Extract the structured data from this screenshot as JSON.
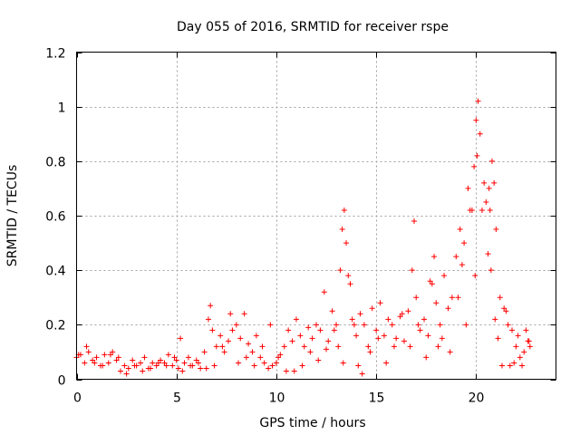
{
  "chart_data": {
    "type": "scatter",
    "title": "Day 055 of 2016, SRMTID for receiver rspe",
    "xlabel": "GPS time / hours",
    "ylabel": "SRMTID / TECUs",
    "xlim": [
      0,
      24
    ],
    "ylim": [
      0,
      1.2
    ],
    "x_ticks": [
      0,
      5,
      10,
      15,
      20
    ],
    "x_tick_labels": [
      "0",
      "5",
      "10",
      "15",
      "20"
    ],
    "y_ticks": [
      0,
      0.2,
      0.4,
      0.6,
      0.8,
      1.0,
      1.2
    ],
    "y_tick_labels": [
      "0",
      "0.2",
      "0.4",
      "0.6",
      "0.8",
      "1",
      "1.2"
    ],
    "grid": true,
    "marker": "plus",
    "color": "#ff0000",
    "series": [
      {
        "name": "rspe",
        "x": [
          0.0,
          0.2,
          0.4,
          0.6,
          0.8,
          1.0,
          1.2,
          1.4,
          1.6,
          1.8,
          2.0,
          2.2,
          2.4,
          2.6,
          2.8,
          3.0,
          3.2,
          3.4,
          3.6,
          3.8,
          4.0,
          4.2,
          4.4,
          4.6,
          4.8,
          5.0,
          5.2,
          5.4,
          5.6,
          5.8,
          6.0,
          6.2,
          6.4,
          6.6,
          6.7,
          6.8,
          7.0,
          7.2,
          7.4,
          7.6,
          7.8,
          8.0,
          8.2,
          8.4,
          8.6,
          8.8,
          9.0,
          9.2,
          9.4,
          9.6,
          9.8,
          10.0,
          10.2,
          10.4,
          10.6,
          10.8,
          11.0,
          11.2,
          11.4,
          11.6,
          11.8,
          12.0,
          12.2,
          12.4,
          12.6,
          12.8,
          13.0,
          13.2,
          13.3,
          13.4,
          13.5,
          13.6,
          13.8,
          14.0,
          14.2,
          14.4,
          14.6,
          14.8,
          15.0,
          15.2,
          15.4,
          15.6,
          15.8,
          16.0,
          16.2,
          16.4,
          16.6,
          16.8,
          16.9,
          17.0,
          17.2,
          17.4,
          17.6,
          17.8,
          17.9,
          18.0,
          18.2,
          18.4,
          18.6,
          18.8,
          19.0,
          19.2,
          19.4,
          19.6,
          19.8,
          19.9,
          20.0,
          20.1,
          20.2,
          20.4,
          20.6,
          20.7,
          20.8,
          20.9,
          21.0,
          21.2,
          21.4,
          21.6,
          21.8,
          22.0,
          22.2,
          22.4,
          22.6,
          22.7,
          0.1,
          0.5,
          0.9,
          1.3,
          1.7,
          2.1,
          2.5,
          2.9,
          3.3,
          3.7,
          4.1,
          4.5,
          4.9,
          5.1,
          5.3,
          5.7,
          6.1,
          6.5,
          6.9,
          7.3,
          7.7,
          8.1,
          8.5,
          8.9,
          9.3,
          9.7,
          10.1,
          10.5,
          10.9,
          11.3,
          11.7,
          12.1,
          12.5,
          12.9,
          13.1,
          13.35,
          13.7,
          13.9,
          14.1,
          14.3,
          14.7,
          15.1,
          15.5,
          15.9,
          16.3,
          16.7,
          17.1,
          17.5,
          17.7,
          18.1,
          18.3,
          18.7,
          19.1,
          19.3,
          19.5,
          19.7,
          19.95,
          20.05,
          20.3,
          20.5,
          20.65,
          20.75,
          20.95,
          21.1,
          21.3,
          21.5,
          21.7,
          21.9,
          22.1,
          22.3,
          22.5,
          22.65
        ],
        "y": [
          0.08,
          0.09,
          0.06,
          0.1,
          0.07,
          0.08,
          0.05,
          0.09,
          0.06,
          0.1,
          0.07,
          0.03,
          0.05,
          0.04,
          0.07,
          0.05,
          0.06,
          0.08,
          0.04,
          0.06,
          0.05,
          0.07,
          0.06,
          0.09,
          0.05,
          0.07,
          0.15,
          0.06,
          0.08,
          0.05,
          0.07,
          0.04,
          0.1,
          0.22,
          0.27,
          0.18,
          0.12,
          0.16,
          0.1,
          0.14,
          0.18,
          0.2,
          0.15,
          0.24,
          0.13,
          0.1,
          0.16,
          0.08,
          0.06,
          0.04,
          0.05,
          0.06,
          0.09,
          0.12,
          0.18,
          0.14,
          0.22,
          0.16,
          0.12,
          0.19,
          0.15,
          0.2,
          0.18,
          0.32,
          0.14,
          0.25,
          0.2,
          0.4,
          0.55,
          0.62,
          0.5,
          0.38,
          0.22,
          0.16,
          0.24,
          0.2,
          0.12,
          0.26,
          0.18,
          0.28,
          0.16,
          0.22,
          0.2,
          0.15,
          0.23,
          0.14,
          0.25,
          0.4,
          0.58,
          0.3,
          0.18,
          0.22,
          0.16,
          0.35,
          0.45,
          0.28,
          0.2,
          0.38,
          0.26,
          0.3,
          0.45,
          0.55,
          0.5,
          0.7,
          0.62,
          0.78,
          0.95,
          1.02,
          0.9,
          0.72,
          0.46,
          0.62,
          0.8,
          0.72,
          0.55,
          0.3,
          0.26,
          0.2,
          0.18,
          0.12,
          0.08,
          0.1,
          0.14,
          0.12,
          0.09,
          0.12,
          0.06,
          0.05,
          0.09,
          0.08,
          0.02,
          0.05,
          0.03,
          0.04,
          0.06,
          0.05,
          0.08,
          0.04,
          0.03,
          0.05,
          0.06,
          0.04,
          0.05,
          0.12,
          0.24,
          0.06,
          0.08,
          0.05,
          0.12,
          0.2,
          0.08,
          0.03,
          0.03,
          0.05,
          0.1,
          0.07,
          0.11,
          0.18,
          0.12,
          0.06,
          0.35,
          0.2,
          0.05,
          0.02,
          0.1,
          0.15,
          0.06,
          0.12,
          0.24,
          0.12,
          0.2,
          0.08,
          0.36,
          0.12,
          0.15,
          0.1,
          0.3,
          0.42,
          0.2,
          0.62,
          0.38,
          0.82,
          0.62,
          0.65,
          0.7,
          0.4,
          0.22,
          0.15,
          0.05,
          0.25,
          0.05,
          0.06,
          0.16,
          0.05,
          0.18,
          0.14
        ]
      }
    ]
  }
}
